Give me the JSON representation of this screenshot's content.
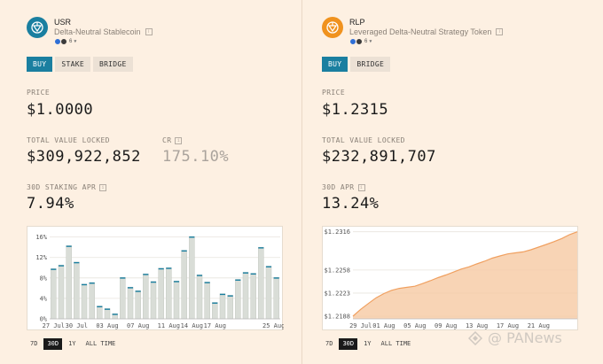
{
  "usr": {
    "name": "USR",
    "description": "Delta-Neutral Stablecoin",
    "chain_count": "6",
    "tabs": [
      "BUY",
      "STAKE",
      "BRIDGE"
    ],
    "price_label": "PRICE",
    "price": "$1.0000",
    "tvl_label": "TOTAL VALUE LOCKED",
    "tvl": "$309,922,852",
    "cr_label": "CR",
    "cr": "175.10%",
    "apr_label": "30D STAKING APR",
    "apr": "7.94%",
    "ranges": [
      "7D",
      "30D",
      "1Y",
      "ALL TIME"
    ],
    "active_range": "30D"
  },
  "rlp": {
    "name": "RLP",
    "description": "Leveraged Delta-Neutral Strategy Token",
    "chain_count": "6",
    "tabs": [
      "BUY",
      "BRIDGE"
    ],
    "price_label": "PRICE",
    "price": "$1.2315",
    "tvl_label": "TOTAL VALUE LOCKED",
    "tvl": "$232,891,707",
    "apr_label": "30D APR",
    "apr": "13.24%",
    "ranges": [
      "7D",
      "30D",
      "1Y",
      "ALL TIME"
    ],
    "active_range": "30D"
  },
  "watermark": "@ PANews",
  "colors": {
    "accent": "#1a7fa0",
    "usr_logo": "#1a7fa0",
    "rlp_logo": "#f0921e",
    "bar": "#d9ddd7",
    "bar_top": "#1a7fa0",
    "area": "#f6c9a2",
    "line": "#f0a060"
  },
  "chart_data": [
    {
      "type": "bar",
      "series": [
        {
          "values": [
            9.8,
            10.5,
            14.3,
            11.1,
            6.8,
            7.1,
            2.5,
            2.0,
            1.0,
            8.1,
            6.2,
            5.5,
            8.8,
            7.3,
            9.9,
            10.0,
            7.4,
            13.4,
            16.1,
            8.6,
            7.2,
            3.2,
            4.9,
            4.6,
            7.7,
            9.1,
            8.9,
            14.0,
            10.3,
            8.1
          ]
        }
      ],
      "x_tick_labels": [
        "27 Jul",
        "30 Jul",
        "03 Aug",
        "07 Aug",
        "11 Aug",
        "14 Aug",
        "17 Aug",
        "25 Aug"
      ],
      "y_tick_labels": [
        "0%",
        "4%",
        "8%",
        "12%",
        "16%"
      ],
      "ylim": [
        0,
        16.8
      ],
      "grid": true
    },
    {
      "type": "area",
      "series": [
        {
          "values": [
            1.1888,
            1.1932,
            1.1969,
            1.2006,
            1.2033,
            1.2054,
            1.2066,
            1.2073,
            1.208,
            1.2097,
            1.2115,
            1.2135,
            1.2152,
            1.2171,
            1.219,
            1.2204,
            1.2223,
            1.224,
            1.226,
            1.2274,
            1.2287,
            1.2294,
            1.23,
            1.2314,
            1.2331,
            1.2348,
            1.2366,
            1.2386,
            1.2411,
            1.2429
          ]
        }
      ],
      "x_tick_labels": [
        "29 Jul",
        "01 Aug",
        "05 Aug",
        "09 Aug",
        "13 Aug",
        "17 Aug",
        "21 Aug"
      ],
      "y_tick_labels": [
        "$1.2316",
        "$1.2258",
        "$1.2223",
        "$1.2188"
      ],
      "ylim": [
        1.1871,
        1.2433
      ],
      "grid": true
    }
  ]
}
